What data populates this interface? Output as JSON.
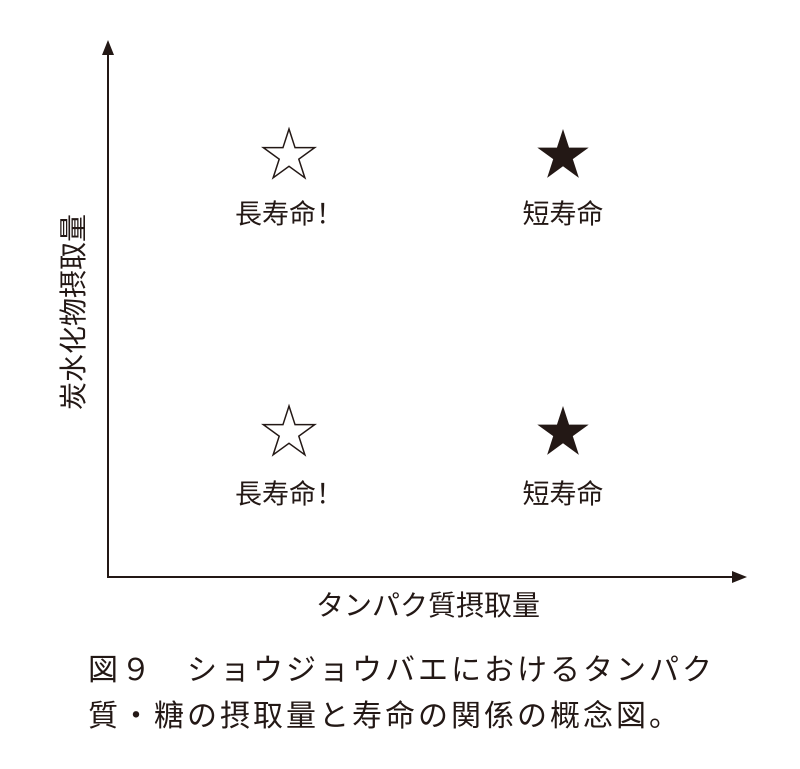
{
  "axes": {
    "y_label": "炭水化物摂取量",
    "x_label": "タンパク質摂取量"
  },
  "quadrants": [
    {
      "label": "長寿命！"
    },
    {
      "label": "短寿命"
    },
    {
      "label": "長寿命！"
    },
    {
      "label": "短寿命"
    }
  ],
  "caption": {
    "lines": [
      "図９　ショウジョウバエにおけるタンパク",
      "質・糖の摂取量と寿命の関係の概念図。"
    ]
  }
}
